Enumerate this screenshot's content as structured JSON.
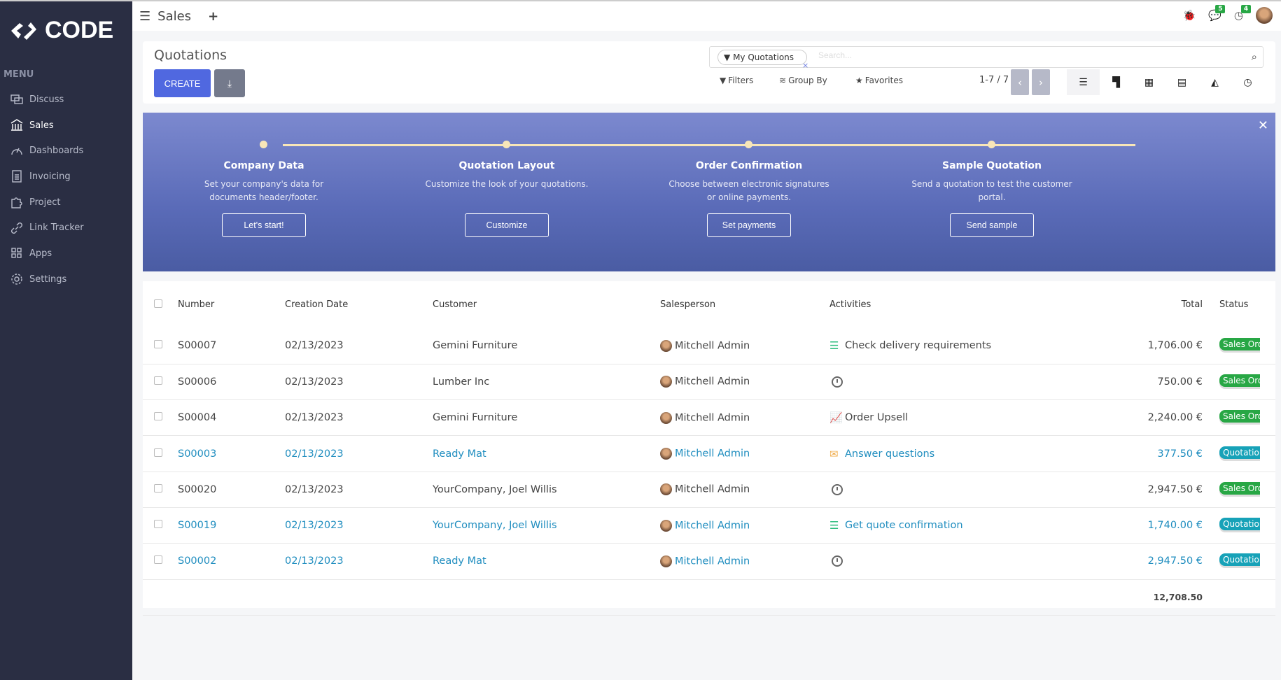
{
  "brand": {
    "logo_text": "CODE"
  },
  "sidebar": {
    "menu_label": "MENU",
    "items": [
      {
        "label": "Discuss",
        "icon": "chat-icon"
      },
      {
        "label": "Sales",
        "icon": "bank-icon",
        "active": true
      },
      {
        "label": "Dashboards",
        "icon": "gauge-icon"
      },
      {
        "label": "Invoicing",
        "icon": "invoice-icon"
      },
      {
        "label": "Project",
        "icon": "puzzle-icon"
      },
      {
        "label": "Link Tracker",
        "icon": "link-icon"
      },
      {
        "label": "Apps",
        "icon": "grid-icon"
      },
      {
        "label": "Settings",
        "icon": "gear-icon"
      }
    ]
  },
  "topbar": {
    "app_name": "Sales",
    "messages_count": "5",
    "activities_count": "4"
  },
  "control": {
    "title": "Quotations",
    "create_label": "CREATE",
    "facet": "My Quotations",
    "search_placeholder": "Search...",
    "filters": "Filters",
    "group_by": "Group By",
    "favorites": "Favorites",
    "pager": "1-7 / 7"
  },
  "banner": {
    "steps": [
      {
        "title": "Company Data",
        "desc": "Set your company's data for documents header/footer.",
        "button": "Let's start!"
      },
      {
        "title": "Quotation Layout",
        "desc": "Customize the look of your quotations.",
        "button": "Customize"
      },
      {
        "title": "Order Confirmation",
        "desc": "Choose between electronic signatures or online payments.",
        "button": "Set payments"
      },
      {
        "title": "Sample Quotation",
        "desc": "Send a quotation to test the customer portal.",
        "button": "Send sample"
      }
    ]
  },
  "table": {
    "headers": {
      "number": "Number",
      "date": "Creation Date",
      "customer": "Customer",
      "salesperson": "Salesperson",
      "activities": "Activities",
      "total": "Total",
      "status": "Status"
    },
    "rows": [
      {
        "number": "S00007",
        "date": "02/13/2023",
        "customer": "Gemini Furniture",
        "salesperson": "Mitchell Admin",
        "activity": "Check delivery requirements",
        "activity_icon": "tasks-icon",
        "total": "1,706.00 €",
        "status": "Sales Order",
        "blue": false
      },
      {
        "number": "S00006",
        "date": "02/13/2023",
        "customer": "Lumber Inc",
        "salesperson": "Mitchell Admin",
        "activity": "",
        "activity_icon": "clock-icon",
        "total": "750.00 €",
        "status": "Sales Order",
        "blue": false
      },
      {
        "number": "S00004",
        "date": "02/13/2023",
        "customer": "Gemini Furniture",
        "salesperson": "Mitchell Admin",
        "activity": "Order Upsell",
        "activity_icon": "chart-line-icon",
        "total": "2,240.00 €",
        "status": "Sales Order",
        "blue": false
      },
      {
        "number": "S00003",
        "date": "02/13/2023",
        "customer": "Ready Mat",
        "salesperson": "Mitchell Admin",
        "activity": "Answer questions",
        "activity_icon": "envelope-icon",
        "total": "377.50 €",
        "status": "Quotation",
        "blue": true
      },
      {
        "number": "S00020",
        "date": "02/13/2023",
        "customer": "YourCompany, Joel Willis",
        "salesperson": "Mitchell Admin",
        "activity": "",
        "activity_icon": "clock-icon",
        "total": "2,947.50 €",
        "status": "Sales Order",
        "blue": false
      },
      {
        "number": "S00019",
        "date": "02/13/2023",
        "customer": "YourCompany, Joel Willis",
        "salesperson": "Mitchell Admin",
        "activity": "Get quote confirmation",
        "activity_icon": "tasks-icon",
        "total": "1,740.00 €",
        "status": "Quotation",
        "blue": true
      },
      {
        "number": "S00002",
        "date": "02/13/2023",
        "customer": "Ready Mat",
        "salesperson": "Mitchell Admin",
        "activity": "",
        "activity_icon": "clock-icon",
        "total": "2,947.50 €",
        "status": "Quotation",
        "blue": true
      }
    ],
    "sum_total": "12,708.50"
  },
  "colors": {
    "sidebar": "#2a2e43",
    "primary": "#5068e0",
    "link": "#1f8dbf",
    "sales_order": "#28a745",
    "quotation": "#17a2b8"
  }
}
